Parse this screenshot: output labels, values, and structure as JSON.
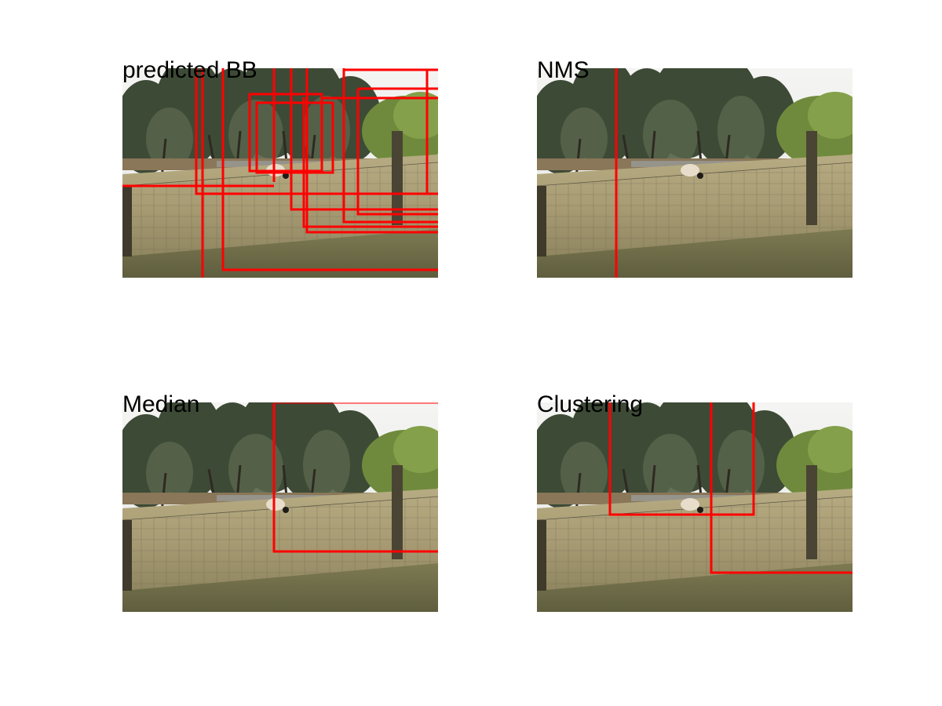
{
  "panels": [
    {
      "id": "predicted-bb",
      "title": "predicted BB"
    },
    {
      "id": "nms",
      "title": "NMS"
    },
    {
      "id": "median",
      "title": "Median"
    },
    {
      "id": "clustering",
      "title": "Clustering"
    }
  ],
  "colors": {
    "box": "#ff0000",
    "background": "#ffffff",
    "title": "#000000"
  }
}
